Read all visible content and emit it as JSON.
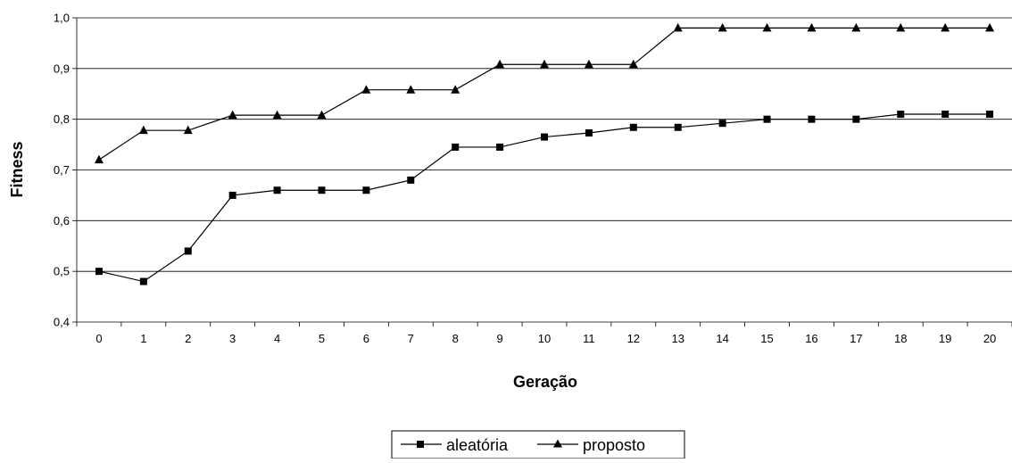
{
  "chart_data": {
    "type": "line",
    "xlabel": "Geração",
    "ylabel": "Fitness",
    "categories": [
      "0",
      "1",
      "2",
      "3",
      "4",
      "5",
      "6",
      "7",
      "8",
      "9",
      "10",
      "11",
      "12",
      "13",
      "14",
      "15",
      "16",
      "17",
      "18",
      "19",
      "20"
    ],
    "ylim": [
      0.4,
      1.0
    ],
    "y_ticks": [
      "0,4",
      "0,5",
      "0,6",
      "0,7",
      "0,8",
      "0,9",
      "1,0"
    ],
    "grid": "horizontal",
    "legend_position": "bottom",
    "series": [
      {
        "name": "aleatória",
        "marker": "square",
        "color": "#000000",
        "values": [
          0.5,
          0.48,
          0.54,
          0.65,
          0.66,
          0.66,
          0.66,
          0.68,
          0.745,
          0.745,
          0.765,
          0.773,
          0.784,
          0.784,
          0.792,
          0.8,
          0.8,
          0.8,
          0.81,
          0.81,
          0.81
        ]
      },
      {
        "name": "proposto",
        "marker": "triangle",
        "color": "#000000",
        "values": [
          0.72,
          0.778,
          0.778,
          0.808,
          0.808,
          0.808,
          0.858,
          0.858,
          0.858,
          0.908,
          0.908,
          0.908,
          0.908,
          0.98,
          0.98,
          0.98,
          0.98,
          0.98,
          0.98,
          0.98,
          0.98
        ]
      }
    ]
  }
}
